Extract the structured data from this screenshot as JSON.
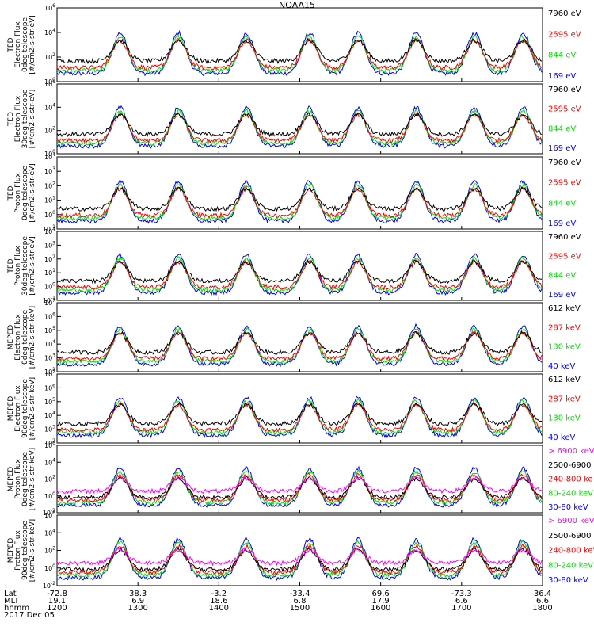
{
  "title": "NOAA15",
  "colors": {
    "blue": "#0000ff",
    "red": "#ff0000",
    "green": "#00e000",
    "black": "#000000",
    "magenta": "#ff00ff"
  },
  "chart_data": [
    {
      "type": "scatter",
      "ylabel": [
        "TED",
        "Electron Flux",
        "0deg telescope",
        "[#/cm2-s-str-eV]"
      ],
      "ylog": true,
      "ylim": [
        1,
        1000000
      ],
      "yticks": [
        {
          "e": "0",
          "v": 1
        },
        {
          "e": "2",
          "v": 100
        },
        {
          "e": "4",
          "v": 10000
        },
        {
          "e": "6",
          "v": 1000000
        }
      ],
      "legend": [
        {
          "label": "7960 eV",
          "color": "#000000"
        },
        {
          "label": "2595 eV",
          "color": "#ff0000"
        },
        {
          "label": "844 eV",
          "color": "#00e000"
        },
        {
          "label": "169 eV",
          "color": "#0000ff"
        }
      ]
    },
    {
      "type": "scatter",
      "ylabel": [
        "TED",
        "Electron Flux",
        "30deg telescope",
        "[#/cm2-s-str-eV]"
      ],
      "ylog": true,
      "ylim": [
        1,
        1000000
      ],
      "yticks": [
        {
          "e": "0",
          "v": 1
        },
        {
          "e": "2",
          "v": 100
        },
        {
          "e": "4",
          "v": 10000
        },
        {
          "e": "6",
          "v": 1000000
        }
      ],
      "legend": [
        {
          "label": "7960 eV",
          "color": "#000000"
        },
        {
          "label": "2595 eV",
          "color": "#ff0000"
        },
        {
          "label": "844 eV",
          "color": "#00e000"
        },
        {
          "label": "169 eV",
          "color": "#0000ff"
        }
      ]
    },
    {
      "type": "scatter",
      "ylabel": [
        "TED",
        "Proton Flux",
        "0deg telescope",
        "[#/cm2-s-str-eV]"
      ],
      "ylog": true,
      "ylim": [
        0.1,
        10000
      ],
      "yticks": [
        {
          "e": "-1",
          "v": 0.1
        },
        {
          "e": "0",
          "v": 1
        },
        {
          "e": "1",
          "v": 10
        },
        {
          "e": "2",
          "v": 100
        },
        {
          "e": "3",
          "v": 1000
        },
        {
          "e": "4",
          "v": 10000
        }
      ],
      "legend": [
        {
          "label": "7960 eV",
          "color": "#000000"
        },
        {
          "label": "2595 eV",
          "color": "#ff0000"
        },
        {
          "label": "844 eV",
          "color": "#00e000"
        },
        {
          "label": "169 eV",
          "color": "#0000ff"
        }
      ]
    },
    {
      "type": "scatter",
      "ylabel": [
        "TED",
        "Proton Flux",
        "30deg telescope",
        "[#/cm2-s-str-eV]"
      ],
      "ylog": true,
      "ylim": [
        0.1,
        10000
      ],
      "yticks": [
        {
          "e": "-1",
          "v": 0.1
        },
        {
          "e": "0",
          "v": 1
        },
        {
          "e": "1",
          "v": 10
        },
        {
          "e": "2",
          "v": 100
        },
        {
          "e": "3",
          "v": 1000
        },
        {
          "e": "4",
          "v": 10000
        }
      ],
      "legend": [
        {
          "label": "7960 eV",
          "color": "#000000"
        },
        {
          "label": "2595 eV",
          "color": "#ff0000"
        },
        {
          "label": "844 eV",
          "color": "#00e000"
        },
        {
          "label": "169 eV",
          "color": "#0000ff"
        }
      ]
    },
    {
      "type": "scatter",
      "ylabel": [
        "MEPED",
        "Electron Flux",
        "0deg telescope",
        "[#/cm2-s-str-keV]"
      ],
      "ylog": true,
      "ylim": [
        100,
        10000000
      ],
      "yticks": [
        {
          "e": "2",
          "v": 100
        },
        {
          "e": "3",
          "v": 1000
        },
        {
          "e": "4",
          "v": 10000
        },
        {
          "e": "5",
          "v": 100000
        },
        {
          "e": "6",
          "v": 1000000
        },
        {
          "e": "7",
          "v": 10000000
        }
      ],
      "legend": [
        {
          "label": "612 keV",
          "color": "#000000"
        },
        {
          "label": "287 keV",
          "color": "#ff0000"
        },
        {
          "label": "130 keV",
          "color": "#00e000"
        },
        {
          "label": "40 keV",
          "color": "#0000ff"
        }
      ]
    },
    {
      "type": "scatter",
      "ylabel": [
        "MEPED",
        "Electron Flux",
        "90deg telescope",
        "[#/cm2-s-str-keV]"
      ],
      "ylog": true,
      "ylim": [
        100,
        10000000
      ],
      "yticks": [
        {
          "e": "2",
          "v": 100
        },
        {
          "e": "3",
          "v": 1000
        },
        {
          "e": "4",
          "v": 10000
        },
        {
          "e": "5",
          "v": 100000
        },
        {
          "e": "6",
          "v": 1000000
        },
        {
          "e": "7",
          "v": 10000000
        }
      ],
      "legend": [
        {
          "label": "612 keV",
          "color": "#000000"
        },
        {
          "label": "287 keV",
          "color": "#ff0000"
        },
        {
          "label": "130 keV",
          "color": "#00e000"
        },
        {
          "label": "40 keV",
          "color": "#0000ff"
        }
      ]
    },
    {
      "type": "scatter",
      "ylabel": [
        "MEPED",
        "Proton Flux",
        "0deg telescope",
        "[#/cm2-s-str-keV]"
      ],
      "ylog": true,
      "ylim": [
        0.01,
        1000000
      ],
      "yticks": [
        {
          "e": "-2",
          "v": 0.01
        },
        {
          "e": "0",
          "v": 1
        },
        {
          "e": "2",
          "v": 100
        },
        {
          "e": "4",
          "v": 10000
        },
        {
          "e": "6",
          "v": 1000000
        }
      ],
      "legend": [
        {
          "label": "> 6900 keV",
          "color": "#ff00ff"
        },
        {
          "label": "2500-6900",
          "color": "#000000"
        },
        {
          "label": "240-800 ke",
          "color": "#ff0000"
        },
        {
          "label": "80-240 keV",
          "color": "#00e000"
        },
        {
          "label": "30-80 keV",
          "color": "#0000ff"
        }
      ]
    },
    {
      "type": "scatter",
      "ylabel": [
        "MEPED",
        "Proton Flux",
        "90deg telescope",
        "[#/cm2-s-str-keV]"
      ],
      "ylog": true,
      "ylim": [
        0.01,
        1000000
      ],
      "yticks": [
        {
          "e": "-2",
          "v": 0.01
        },
        {
          "e": "0",
          "v": 1
        },
        {
          "e": "2",
          "v": 100
        },
        {
          "e": "4",
          "v": 10000
        },
        {
          "e": "6",
          "v": 1000000
        }
      ],
      "legend": [
        {
          "label": "> 6900 keV",
          "color": "#ff00ff"
        },
        {
          "label": "2500-6900",
          "color": "#000000"
        },
        {
          "label": "240-800 keV",
          "color": "#ff0000"
        },
        {
          "label": "80-240 keV",
          "color": "#00e000"
        },
        {
          "label": "30-80 keV",
          "color": "#0000ff"
        }
      ]
    }
  ],
  "time_axis": {
    "row_labels": [
      "Lat",
      "MLT",
      "hhmm",
      "2017 Dec 05"
    ],
    "ticks": [
      {
        "lat": "-72.8",
        "mlt": "19.1",
        "hhmm": "1200"
      },
      {
        "lat": "38.3",
        "mlt": "6.9",
        "hhmm": "1300"
      },
      {
        "lat": "-3.2",
        "mlt": "18.6",
        "hhmm": "1400"
      },
      {
        "lat": "-33.4",
        "mlt": "6.8",
        "hhmm": "1500"
      },
      {
        "lat": "69.6",
        "mlt": "17.9",
        "hhmm": "1600"
      },
      {
        "lat": "-73.3",
        "mlt": "6.6",
        "hhmm": "1700"
      },
      {
        "lat": "36.4",
        "mlt": "6.6",
        "hhmm": "1800"
      }
    ]
  }
}
